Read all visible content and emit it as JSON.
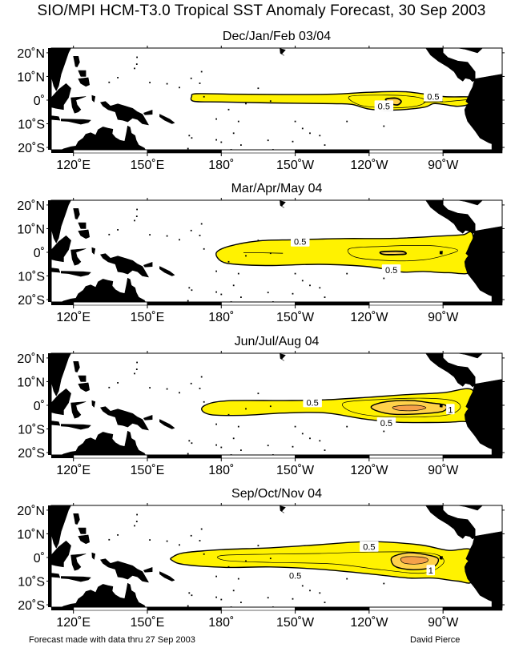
{
  "title": "SIO/MPI HCM-T3.0 Tropical SST Anomaly Forecast, 30 Sep 2003",
  "colors": {
    "land": "#000000",
    "ocean": "#ffffff",
    "anomaly_low": "#fff200",
    "anomaly_mid": "#ffd24a",
    "anomaly_high": "#f5a14a",
    "contour": "#000000"
  },
  "axes": {
    "lat_labels": [
      "20˚N",
      "10˚N",
      "0˚",
      "10˚S",
      "20˚S"
    ],
    "lon_labels": [
      "120˚E",
      "150˚E",
      "180˚",
      "150˚W",
      "120˚W",
      "90˚W"
    ]
  },
  "panels": [
    {
      "title": "Dec/Jan/Feb 03/04",
      "contour_labels": [
        {
          "text": "0.5",
          "lon": 266,
          "lat": 1.5
        },
        {
          "text": "0.5",
          "lon": 246,
          "lat": -2.5
        }
      ]
    },
    {
      "title": "Mar/Apr/May 04",
      "contour_labels": [
        {
          "text": "0.5",
          "lon": 212,
          "lat": 4.5
        },
        {
          "text": "0.5",
          "lon": 249,
          "lat": -7.5
        }
      ]
    },
    {
      "title": "Jun/Jul/Aug 04",
      "contour_labels": [
        {
          "text": "0.5",
          "lon": 217,
          "lat": 1.2
        },
        {
          "text": "1",
          "lon": 273,
          "lat": -1.8
        },
        {
          "text": "0.5",
          "lon": 247,
          "lat": -7.5
        }
      ]
    },
    {
      "title": "Sep/Oct/Nov 04",
      "contour_labels": [
        {
          "text": "0.5",
          "lon": 240,
          "lat": 4.5
        },
        {
          "text": "1",
          "lon": 265,
          "lat": -5.5
        },
        {
          "text": "0.5",
          "lon": 210,
          "lat": -7.7
        }
      ]
    }
  ],
  "footer": {
    "left": "Forecast made with data thru 27 Sep 2003",
    "right": "David Pierce"
  }
}
